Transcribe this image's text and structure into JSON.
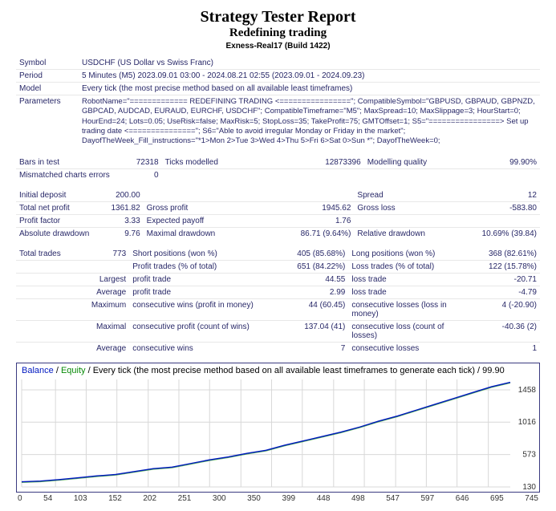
{
  "header": {
    "title": "Strategy Tester Report",
    "subtitle": "Redefining trading",
    "build": "Exness-Real17 (Build 1422)"
  },
  "meta_rows": {
    "symbol_label": "Symbol",
    "symbol_value": "USDCHF (US Dollar vs Swiss Franc)",
    "period_label": "Period",
    "period_value": "5 Minutes (M5) 2023.09.01 03:00 - 2024.08.21 02:55 (2023.09.01 - 2024.09.23)",
    "model_label": "Model",
    "model_value": "Every tick (the most precise method based on all available least timeframes)",
    "params_label": "Parameters",
    "params_value": "RobotName=\"============= REDEFINING TRADING <================\"; CompatibleSymbol=\"GBPUSD, GBPAUD, GBPNZD, GBPCAD, AUDCAD, EURAUD, EURCHF, USDCHF\"; CompatibleTimeframe=\"M5\"; MaxSpread=10; MaxSlippage=3; HourStart=0; HourEnd=24; Lots=0.05; UseRisk=false; MaxRisk=5; StopLoss=35; TakeProfit=75; GMTOffset=1; S5=\"================> Set up trading date <===============\"; S6=\"Able to avoid irregular Monday or Friday in the market\"; DayofTheWeek_Fill_instructions=\"*1>Mon 2>Tue 3>Wed 4>Thu 5>Fri 6>Sat 0>Sun *\"; DayofTheWeek=0;"
  },
  "stats": {
    "bars_in_test_label": "Bars in test",
    "bars_in_test": "72318",
    "ticks_modelled_label": "Ticks modelled",
    "ticks_modelled": "12873396",
    "modelling_quality_label": "Modelling quality",
    "modelling_quality": "99.90%",
    "mismatched_label": "Mismatched charts errors",
    "mismatched": "0",
    "initial_deposit_label": "Initial deposit",
    "initial_deposit": "200.00",
    "spread_label": "Spread",
    "spread": "12",
    "total_net_profit_label": "Total net profit",
    "total_net_profit": "1361.82",
    "gross_profit_label": "Gross profit",
    "gross_profit": "1945.62",
    "gross_loss_label": "Gross loss",
    "gross_loss": "-583.80",
    "profit_factor_label": "Profit factor",
    "profit_factor": "3.33",
    "expected_payoff_label": "Expected payoff",
    "expected_payoff": "1.76",
    "abs_dd_label": "Absolute drawdown",
    "abs_dd": "9.76",
    "max_dd_label": "Maximal drawdown",
    "max_dd": "86.71 (9.64%)",
    "rel_dd_label": "Relative drawdown",
    "rel_dd": "10.69% (39.84)",
    "total_trades_label": "Total trades",
    "total_trades": "773",
    "short_pos_label": "Short positions (won %)",
    "short_pos": "405 (85.68%)",
    "long_pos_label": "Long positions (won %)",
    "long_pos": "368 (82.61%)",
    "profit_trades_label": "Profit trades (% of total)",
    "profit_trades": "651 (84.22%)",
    "loss_trades_label": "Loss trades (% of total)",
    "loss_trades": "122 (15.78%)",
    "largest_label": "Largest",
    "largest_profit_trade_label": "profit trade",
    "largest_profit_trade": "44.55",
    "largest_loss_trade_label": "loss trade",
    "largest_loss_trade": "-20.71",
    "average_label": "Average",
    "avg_profit_trade_label": "profit trade",
    "avg_profit_trade": "2.99",
    "avg_loss_trade_label": "loss trade",
    "avg_loss_trade": "-4.79",
    "maximum_label": "Maximum",
    "max_cons_wins_m_label": "consecutive wins (profit in money)",
    "max_cons_wins_m": "44 (60.45)",
    "max_cons_losses_m_label": "consecutive losses (loss in money)",
    "max_cons_losses_m": "4 (-20.90)",
    "maximal_label": "Maximal",
    "max_cons_profit_label": "consecutive profit (count of wins)",
    "max_cons_profit": "137.04 (41)",
    "max_cons_loss_label": "consecutive loss (count of losses)",
    "max_cons_loss": "-40.36 (2)",
    "average2_label": "Average",
    "avg_cons_wins_label": "consecutive wins",
    "avg_cons_wins": "7",
    "avg_cons_losses_label": "consecutive losses",
    "avg_cons_losses": "1"
  },
  "chart": {
    "legend_balance": "Balance",
    "legend_equity": "Equity",
    "legend_rest": " / Every tick (the most precise method based on all available least timeframes to generate each tick) / 99.90",
    "y_ticks": [
      "1458",
      "1016",
      "573",
      "130"
    ],
    "x_ticks": [
      "0",
      "54",
      "103",
      "152",
      "202",
      "251",
      "300",
      "350",
      "399",
      "448",
      "498",
      "547",
      "597",
      "646",
      "695",
      "745"
    ],
    "balance_color": "#0018c0",
    "equity_color": "#088a08",
    "grid_color": "#d8d8d8",
    "bg_color": "#ffffff",
    "ylim": [
      130,
      1600
    ],
    "xlim": [
      0,
      780
    ],
    "balance_points": [
      [
        0,
        200
      ],
      [
        30,
        210
      ],
      [
        60,
        230
      ],
      [
        90,
        255
      ],
      [
        120,
        280
      ],
      [
        150,
        300
      ],
      [
        180,
        340
      ],
      [
        210,
        380
      ],
      [
        240,
        400
      ],
      [
        270,
        450
      ],
      [
        300,
        500
      ],
      [
        330,
        540
      ],
      [
        360,
        590
      ],
      [
        390,
        630
      ],
      [
        420,
        700
      ],
      [
        450,
        760
      ],
      [
        480,
        820
      ],
      [
        510,
        880
      ],
      [
        540,
        950
      ],
      [
        570,
        1030
      ],
      [
        600,
        1100
      ],
      [
        630,
        1180
      ],
      [
        660,
        1260
      ],
      [
        690,
        1340
      ],
      [
        720,
        1420
      ],
      [
        750,
        1500
      ],
      [
        780,
        1560
      ]
    ]
  }
}
